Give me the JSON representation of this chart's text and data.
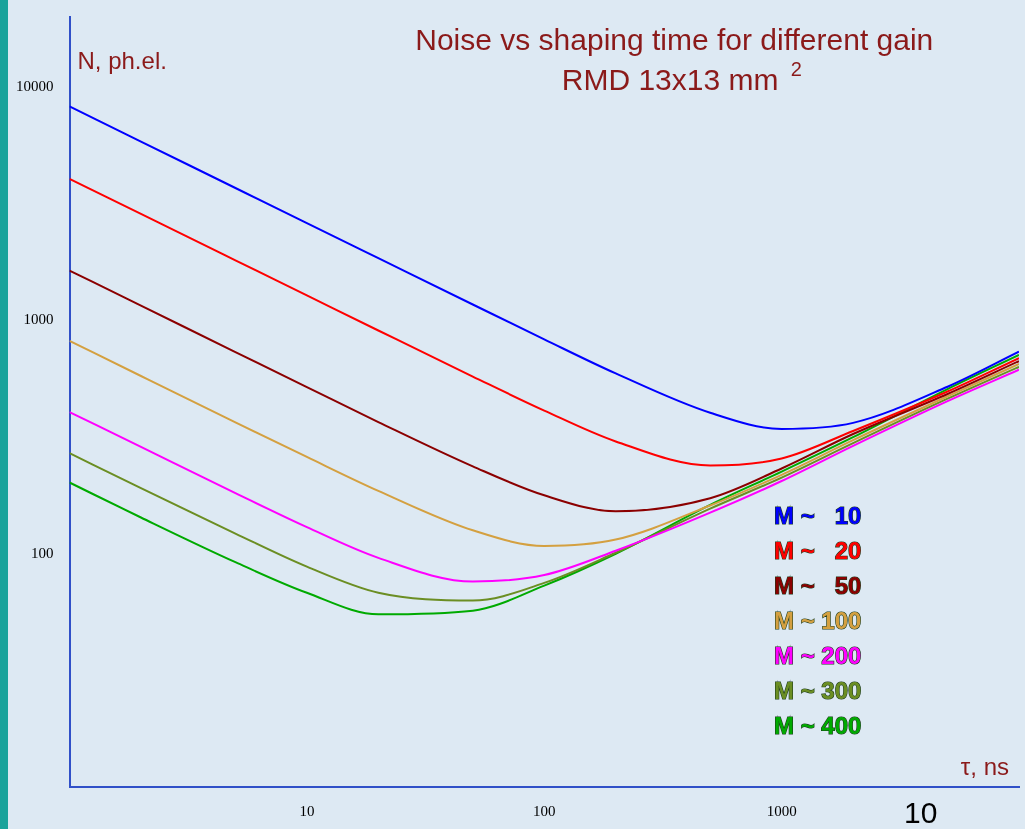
{
  "chart_data": {
    "type": "line",
    "title": "Noise vs shaping time for different gain",
    "subtitle": "RMD 13x13 mm $^{2}$",
    "xlabel": "τ, ns",
    "ylabel": "N, ph.el.",
    "x": [
      1,
      2,
      5,
      10,
      20,
      50,
      100,
      200,
      500,
      1000,
      2000,
      5000,
      10000
    ],
    "series": [
      {
        "name": "M ~   10",
        "color": "#0000ff",
        "values": [
          8270,
          5848,
          3698,
          2615,
          1850,
          1171,
          830,
          593,
          402,
          343,
          364,
          520,
          735
        ]
      },
      {
        "name": "M ~   20",
        "color": "#ff0000",
        "values": [
          4050,
          2864,
          1811,
          1281,
          906,
          575,
          411,
          303,
          239,
          256,
          336,
          496,
          690
        ]
      },
      {
        "name": "M ~   50",
        "color": "#8b0000",
        "values": [
          1637,
          1158,
          732,
          518,
          367,
          237,
          178,
          152,
          173,
          232,
          326,
          484,
          670
        ]
      },
      {
        "name": "M ~ 100",
        "color": "#d4a040",
        "values": [
          818,
          578,
          366,
          260,
          186,
          126,
          108,
          115,
          161,
          218,
          307,
          473,
          651
        ]
      },
      {
        "name": "M ~ 200",
        "color": "#ff00ff",
        "values": [
          405,
          287,
          182,
          130,
          96,
          76,
          81,
          103,
          150,
          205,
          290,
          451,
          615
        ]
      },
      {
        "name": "M ~ 300",
        "color": "#6b8e23",
        "values": [
          270,
          191,
          122,
          88,
          68,
          63,
          75,
          101,
          156,
          212,
          298,
          462,
          633
        ]
      },
      {
        "name": "M ~ 400",
        "color": "#00aa00",
        "values": [
          202,
          143,
          92,
          68,
          55,
          57,
          73,
          100,
          162,
          225,
          316,
          508,
          712
        ]
      }
    ],
    "log": "xy",
    "xlim": [
      1,
      10000
    ],
    "ylim": [
      10,
      20000
    ],
    "xticks": [
      10,
      100,
      1000
    ],
    "yticks": [
      100,
      1000,
      10000
    ],
    "legend": "right",
    "grid": false,
    "marker": "none",
    "line_style": "solid",
    "annotations": [
      "10"
    ]
  }
}
